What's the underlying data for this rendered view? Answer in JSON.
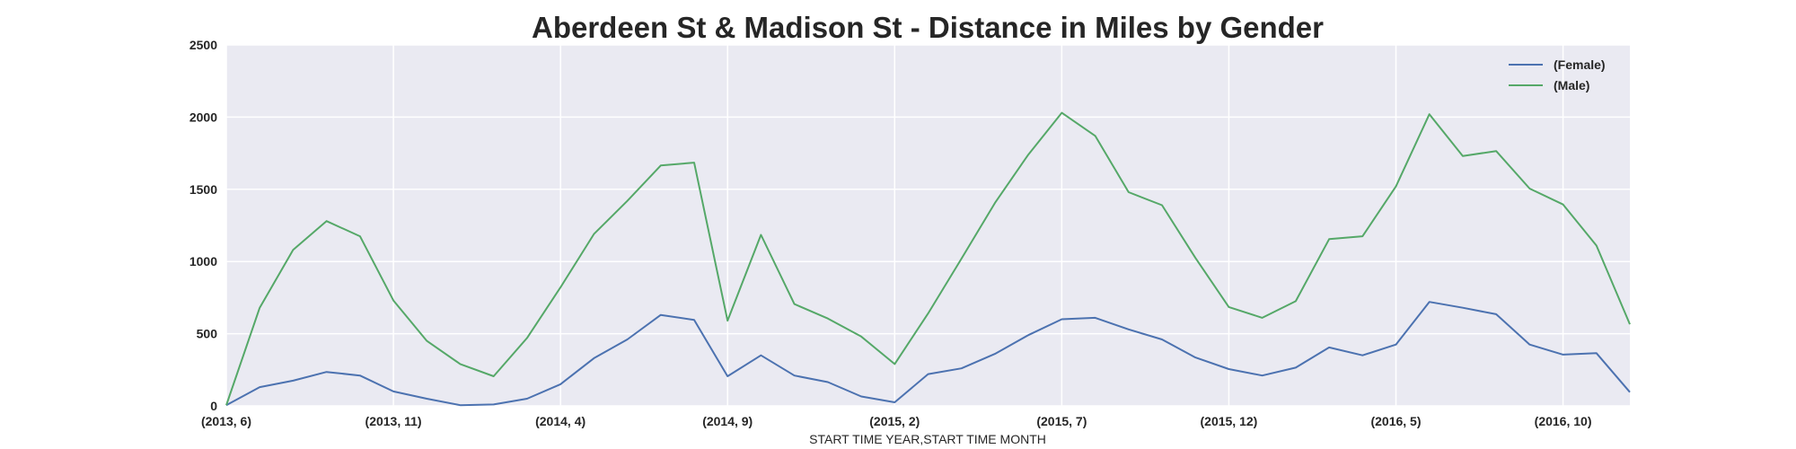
{
  "chart_data": {
    "type": "line",
    "title": "Aberdeen St & Madison St - Distance in Miles by Gender",
    "xlabel": "START TIME YEAR,START TIME MONTH",
    "ylabel": "",
    "ylim": [
      0,
      2500
    ],
    "yticks": [
      "0",
      "500",
      "1000",
      "1500",
      "2000",
      "2500"
    ],
    "ytick_values": [
      0,
      500,
      1000,
      1500,
      2000,
      2500
    ],
    "xticks": [
      "(2013, 6)",
      "(2013, 11)",
      "(2014, 4)",
      "(2014, 9)",
      "(2015, 2)",
      "(2015, 7)",
      "(2015, 12)",
      "(2016, 5)",
      "(2016, 10)"
    ],
    "xtick_positions": [
      0,
      5,
      10,
      15,
      20,
      25,
      30,
      35,
      40
    ],
    "grid": true,
    "legend_placement": "top-right",
    "x": [
      "(2013, 6)",
      "(2013, 7)",
      "(2013, 8)",
      "(2013, 9)",
      "(2013, 10)",
      "(2013, 11)",
      "(2013, 12)",
      "(2014, 1)",
      "(2014, 2)",
      "(2014, 3)",
      "(2014, 4)",
      "(2014, 5)",
      "(2014, 6)",
      "(2014, 7)",
      "(2014, 8)",
      "(2014, 9)",
      "(2014, 10)",
      "(2014, 11)",
      "(2014, 12)",
      "(2015, 1)",
      "(2015, 2)",
      "(2015, 3)",
      "(2015, 4)",
      "(2015, 5)",
      "(2015, 6)",
      "(2015, 7)",
      "(2015, 8)",
      "(2015, 9)",
      "(2015, 10)",
      "(2015, 11)",
      "(2015, 12)",
      "(2016, 1)",
      "(2016, 2)",
      "(2016, 3)",
      "(2016, 4)",
      "(2016, 5)",
      "(2016, 6)",
      "(2016, 7)",
      "(2016, 8)",
      "(2016, 9)",
      "(2016, 10)",
      "(2016, 11)",
      "(2016, 12)"
    ],
    "series": [
      {
        "name": "(Female)",
        "color": "#4c72b0",
        "values": [
          5,
          130,
          175,
          235,
          210,
          100,
          50,
          5,
          10,
          50,
          150,
          330,
          460,
          630,
          595,
          205,
          350,
          210,
          165,
          65,
          25,
          220,
          260,
          360,
          490,
          600,
          610,
          530,
          460,
          335,
          255,
          210,
          265,
          405,
          350,
          425,
          720,
          680,
          635,
          425,
          355,
          365,
          95
        ]
      },
      {
        "name": "(Male)",
        "color": "#55a868",
        "values": [
          5,
          680,
          1080,
          1280,
          1175,
          730,
          450,
          290,
          205,
          470,
          820,
          1190,
          1420,
          1665,
          1685,
          590,
          1185,
          705,
          605,
          480,
          290,
          640,
          1020,
          1405,
          1740,
          2030,
          1870,
          1480,
          1390,
          1025,
          685,
          610,
          725,
          1155,
          1175,
          1520,
          2020,
          1730,
          1765,
          1505,
          1395,
          1110,
          565
        ]
      }
    ]
  }
}
